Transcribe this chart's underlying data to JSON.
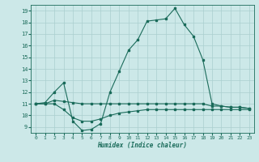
{
  "xlabel": "Humidex (Indice chaleur)",
  "background_color": "#cce8e8",
  "line_color": "#1a6b5a",
  "grid_color": "#aacfcf",
  "xlim": [
    -0.5,
    23.5
  ],
  "ylim": [
    8.5,
    19.5
  ],
  "xticks": [
    0,
    1,
    2,
    3,
    4,
    5,
    6,
    7,
    8,
    9,
    10,
    11,
    12,
    13,
    14,
    15,
    16,
    17,
    18,
    19,
    20,
    21,
    22,
    23
  ],
  "yticks": [
    9,
    10,
    11,
    12,
    13,
    14,
    15,
    16,
    17,
    18,
    19
  ],
  "line1_x": [
    0,
    1,
    2,
    3,
    4,
    5,
    6,
    7,
    8,
    9,
    10,
    11,
    12,
    13,
    14,
    15,
    16,
    17,
    18,
    19,
    20,
    21,
    22,
    23
  ],
  "line1_y": [
    11.0,
    11.1,
    12.0,
    12.8,
    9.5,
    8.7,
    8.8,
    9.3,
    12.0,
    13.8,
    15.6,
    16.5,
    18.1,
    18.2,
    18.3,
    19.2,
    17.8,
    16.8,
    14.8,
    11.0,
    10.8,
    10.7,
    10.7,
    10.6
  ],
  "line2_x": [
    0,
    1,
    2,
    3,
    4,
    5,
    6,
    7,
    8,
    9,
    10,
    11,
    12,
    13,
    14,
    15,
    16,
    17,
    18,
    19,
    20,
    21,
    22,
    23
  ],
  "line2_y": [
    11.0,
    11.0,
    11.3,
    11.2,
    11.1,
    11.0,
    11.0,
    11.0,
    11.0,
    11.0,
    11.0,
    11.0,
    11.0,
    11.0,
    11.0,
    11.0,
    11.0,
    11.0,
    11.0,
    10.8,
    10.8,
    10.7,
    10.7,
    10.6
  ],
  "line3_x": [
    0,
    1,
    2,
    3,
    4,
    5,
    6,
    7,
    8,
    9,
    10,
    11,
    12,
    13,
    14,
    15,
    16,
    17,
    18,
    19,
    20,
    21,
    22,
    23
  ],
  "line3_y": [
    11.0,
    11.0,
    11.0,
    10.5,
    9.8,
    9.5,
    9.5,
    9.7,
    10.0,
    10.2,
    10.3,
    10.4,
    10.5,
    10.5,
    10.5,
    10.5,
    10.5,
    10.5,
    10.5,
    10.5,
    10.5,
    10.5,
    10.5,
    10.5
  ]
}
